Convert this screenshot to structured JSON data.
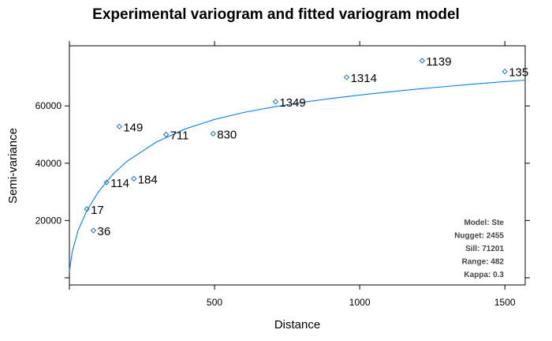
{
  "chart_data": {
    "type": "scatter",
    "title": "Experimental variogram and fitted variogram model",
    "xlabel": "Distance",
    "ylabel": "Semi-variance",
    "xlim": [
      0,
      1570
    ],
    "ylim": [
      -2500,
      81000
    ],
    "x_ticks": [
      0,
      500,
      1000,
      1500
    ],
    "x_tick_labels": [
      "",
      "500",
      "1000",
      "1500"
    ],
    "y_ticks": [
      0,
      20000,
      40000,
      60000
    ],
    "y_tick_labels": [
      "",
      "20000",
      "40000",
      "60000"
    ],
    "points": [
      {
        "x": 60,
        "y": 24000,
        "label": "17"
      },
      {
        "x": 83,
        "y": 16500,
        "label": "36"
      },
      {
        "x": 128,
        "y": 33300,
        "label": "114"
      },
      {
        "x": 172,
        "y": 52800,
        "label": "149"
      },
      {
        "x": 222,
        "y": 34600,
        "label": "184"
      },
      {
        "x": 333,
        "y": 50000,
        "label": "711"
      },
      {
        "x": 495,
        "y": 50300,
        "label": "830"
      },
      {
        "x": 710,
        "y": 61500,
        "label": "1349"
      },
      {
        "x": 955,
        "y": 70000,
        "label": "1314"
      },
      {
        "x": 1215,
        "y": 75800,
        "label": "1139"
      },
      {
        "x": 1500,
        "y": 72000,
        "label": "135"
      }
    ],
    "point_color": "#1f77b4",
    "line_color": "#0080ff",
    "fit_line": {
      "x": [
        0,
        10,
        30,
        60,
        100,
        150,
        200,
        300,
        400,
        500,
        600,
        700,
        800,
        900,
        1000,
        1100,
        1200,
        1300,
        1400,
        1500,
        1570
      ],
      "y": [
        2455,
        9200,
        16500,
        23500,
        30000,
        36200,
        40800,
        47400,
        52000,
        55300,
        57700,
        59600,
        61200,
        62600,
        63800,
        64900,
        65900,
        66800,
        67700,
        68500,
        69000
      ]
    },
    "grid": false,
    "model_box": {
      "placement": "bottom-right",
      "lines": [
        "Model: Ste",
        "Nugget: 2455",
        "Sill: 71201",
        "Range: 482",
        "Kappa: 0.3"
      ]
    }
  }
}
